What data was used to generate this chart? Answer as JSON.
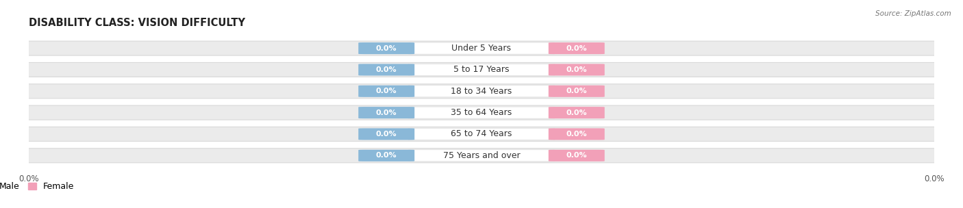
{
  "title": "DISABILITY CLASS: VISION DIFFICULTY",
  "source": "Source: ZipAtlas.com",
  "categories": [
    "Under 5 Years",
    "5 to 17 Years",
    "18 to 34 Years",
    "35 to 64 Years",
    "65 to 74 Years",
    "75 Years and over"
  ],
  "male_values": [
    0.0,
    0.0,
    0.0,
    0.0,
    0.0,
    0.0
  ],
  "female_values": [
    0.0,
    0.0,
    0.0,
    0.0,
    0.0,
    0.0
  ],
  "male_color": "#8ab8d8",
  "female_color": "#f2a0b8",
  "male_label": "Male",
  "female_label": "Female",
  "title_fontsize": 10.5,
  "label_fontsize": 9,
  "value_fontsize": 8,
  "bg_color": "#ffffff",
  "row_color": "#ebebeb",
  "row_edge_color": "#d8d8d8"
}
